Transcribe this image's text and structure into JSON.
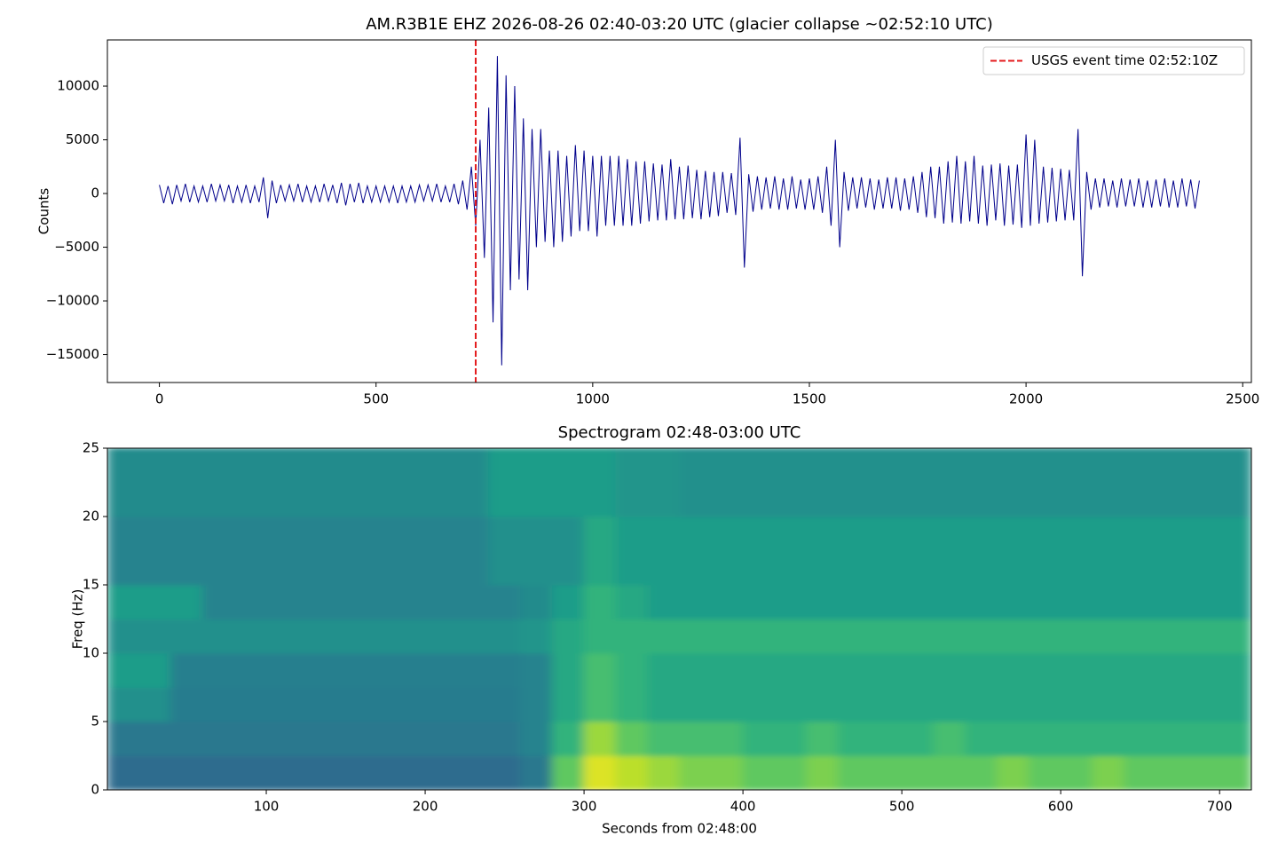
{
  "chart_data": [
    {
      "type": "line",
      "title": "AM.R3B1E EHZ  2026-08-26 02:40-03:20 UTC (glacier collapse ~02:52:10 UTC)",
      "ylabel": "Counts",
      "xlim": [
        -120,
        2520
      ],
      "ylim": [
        -17600,
        14300
      ],
      "xticks": [
        0,
        500,
        1000,
        1500,
        2000,
        2500
      ],
      "yticks": [
        {
          "value": -15000,
          "label": "−15000"
        },
        {
          "value": -10000,
          "label": "−10000"
        },
        {
          "value": -5000,
          "label": "−5000"
        },
        0,
        5000,
        10000
      ],
      "x": [
        0,
        10,
        20,
        30,
        40,
        50,
        60,
        70,
        80,
        90,
        100,
        110,
        120,
        130,
        140,
        150,
        160,
        170,
        180,
        190,
        200,
        210,
        220,
        230,
        240,
        250,
        260,
        270,
        280,
        290,
        300,
        310,
        320,
        330,
        340,
        350,
        360,
        370,
        380,
        390,
        400,
        410,
        420,
        430,
        440,
        450,
        460,
        470,
        480,
        490,
        500,
        510,
        520,
        530,
        540,
        550,
        560,
        570,
        580,
        590,
        600,
        610,
        620,
        630,
        640,
        650,
        660,
        670,
        680,
        690,
        700,
        710,
        720,
        730,
        740,
        750,
        760,
        770,
        780,
        790,
        800,
        810,
        820,
        830,
        840,
        850,
        860,
        870,
        880,
        890,
        900,
        910,
        920,
        930,
        940,
        950,
        960,
        970,
        980,
        990,
        1000,
        1010,
        1020,
        1030,
        1040,
        1050,
        1060,
        1070,
        1080,
        1090,
        1100,
        1110,
        1120,
        1130,
        1140,
        1150,
        1160,
        1170,
        1180,
        1190,
        1200,
        1210,
        1220,
        1230,
        1240,
        1250,
        1260,
        1270,
        1280,
        1290,
        1300,
        1310,
        1320,
        1330,
        1340,
        1350,
        1360,
        1370,
        1380,
        1390,
        1400,
        1410,
        1420,
        1430,
        1440,
        1450,
        1460,
        1470,
        1480,
        1490,
        1500,
        1510,
        1520,
        1530,
        1540,
        1550,
        1560,
        1570,
        1580,
        1590,
        1600,
        1610,
        1620,
        1630,
        1640,
        1650,
        1660,
        1670,
        1680,
        1690,
        1700,
        1710,
        1720,
        1730,
        1740,
        1750,
        1760,
        1770,
        1780,
        1790,
        1800,
        1810,
        1820,
        1830,
        1840,
        1850,
        1860,
        1870,
        1880,
        1890,
        1900,
        1910,
        1920,
        1930,
        1940,
        1950,
        1960,
        1970,
        1980,
        1990,
        2000,
        2010,
        2020,
        2030,
        2040,
        2050,
        2060,
        2070,
        2080,
        2090,
        2100,
        2110,
        2120,
        2130,
        2140,
        2150,
        2160,
        2170,
        2180,
        2190,
        2200,
        2210,
        2220,
        2230,
        2240,
        2250,
        2260,
        2270,
        2280,
        2290,
        2300,
        2310,
        2320,
        2330,
        2340,
        2350,
        2360,
        2370,
        2380,
        2390,
        2400
      ],
      "series": [
        {
          "color": "#00008b",
          "values": [
            800,
            -900,
            700,
            -1000,
            800,
            -700,
            900,
            -800,
            700,
            -800,
            700,
            -800,
            900,
            -700,
            800,
            -700,
            800,
            -900,
            700,
            -800,
            800,
            -900,
            700,
            -800,
            1500,
            -2300,
            1200,
            -900,
            800,
            -700,
            800,
            -700,
            900,
            -800,
            700,
            -800,
            700,
            -800,
            900,
            -700,
            800,
            -900,
            1000,
            -1100,
            900,
            -800,
            1000,
            -900,
            700,
            -800,
            700,
            -800,
            700,
            -800,
            700,
            -900,
            700,
            -800,
            700,
            -800,
            800,
            -700,
            800,
            -700,
            900,
            -800,
            700,
            -800,
            900,
            -1000,
            1200,
            -1500,
            2500,
            -3000,
            5000,
            -6000,
            8000,
            -12000,
            12800,
            -16000,
            11000,
            -9000,
            10000,
            -8000,
            7000,
            -9000,
            6000,
            -5000,
            6000,
            -4500,
            4000,
            -5000,
            4000,
            -4500,
            3500,
            -4000,
            4500,
            -3500,
            4000,
            -3500,
            3500,
            -4000,
            3500,
            -3000,
            3500,
            -3000,
            3500,
            -3000,
            3200,
            -3000,
            3000,
            -2800,
            3000,
            -2600,
            2800,
            -2500,
            2700,
            -2500,
            3200,
            -2400,
            2500,
            -2400,
            2600,
            -2300,
            2200,
            -2400,
            2100,
            -2200,
            2000,
            -2100,
            2000,
            -1800,
            1900,
            -2000,
            5200,
            -6900,
            1800,
            -1700,
            1600,
            -1500,
            1500,
            -1400,
            1600,
            -1500,
            1400,
            -1500,
            1600,
            -1400,
            1300,
            -1500,
            1400,
            -1500,
            1600,
            -1800,
            2500,
            -3000,
            5000,
            -5000,
            2000,
            -1600,
            1500,
            -1400,
            1500,
            -1300,
            1400,
            -1500,
            1300,
            -1400,
            1500,
            -1400,
            1500,
            -1600,
            1400,
            -1500,
            1600,
            -1800,
            2000,
            -2200,
            2500,
            -2300,
            2500,
            -2800,
            3000,
            -2700,
            3500,
            -2800,
            3000,
            -2600,
            3500,
            -2800,
            2600,
            -3000,
            2700,
            -2500,
            2800,
            -3000,
            2600,
            -2900,
            2700,
            -3200,
            5500,
            -3000,
            5000,
            -2800,
            2500,
            -2700,
            2400,
            -2600,
            2300,
            -2500,
            2200,
            -2500,
            6000,
            -7700,
            2000,
            -1500,
            1400,
            -1300,
            1400,
            -1200,
            1200,
            -1300,
            1400,
            -1200,
            1300,
            -1200,
            1400,
            -1300,
            1200,
            -1300,
            1300,
            -1200,
            1400,
            -1300,
            1200,
            -1300,
            1400,
            -1200,
            1300,
            -1400,
            1200
          ]
        }
      ],
      "vlines": [
        {
          "x": 730,
          "name": "USGS event time 02:52:10Z",
          "color": "#e41a1c",
          "style": "dashed"
        }
      ],
      "legend": "upper right"
    },
    {
      "type": "heatmap",
      "title": "Spectrogram 02:48-03:00 UTC",
      "xlabel": "Seconds from 02:48:00",
      "ylabel": "Freq (Hz)",
      "xlim": [
        0,
        720
      ],
      "ylim": [
        0,
        25
      ],
      "xticks": [
        100,
        200,
        300,
        400,
        500,
        600,
        700
      ],
      "yticks": [
        0,
        5,
        10,
        15,
        20,
        25
      ],
      "colormap": "viridis",
      "zlim": [
        0,
        10
      ],
      "xbins": [
        0,
        20,
        40,
        60,
        80,
        100,
        120,
        140,
        160,
        180,
        200,
        220,
        240,
        260,
        280,
        300,
        320,
        340,
        360,
        380,
        400,
        420,
        440,
        460,
        480,
        500,
        520,
        540,
        560,
        580,
        600,
        620,
        640,
        660,
        680,
        700,
        720
      ],
      "ybins": [
        0,
        2.5,
        5,
        7.5,
        10,
        12.5,
        15,
        17.5,
        20,
        22.5,
        25
      ],
      "z": [
        [
          3.5,
          3.5,
          3.5,
          3.5,
          3.5,
          3.5,
          3.5,
          3.5,
          3.5,
          3.5,
          3.5,
          3.5,
          3.5,
          4,
          7.5,
          9.5,
          9,
          8.5,
          8,
          8,
          7.5,
          7.5,
          8,
          7.5,
          7.5,
          7.5,
          7.5,
          7.5,
          8,
          7.5,
          7.5,
          8,
          7.5,
          7.5,
          7.5,
          7.5
        ],
        [
          4,
          4,
          4,
          4,
          4,
          4,
          4,
          4,
          4,
          4,
          4,
          4,
          4,
          4.5,
          6.5,
          8.5,
          7.5,
          7,
          7,
          7,
          6.5,
          6.5,
          7,
          6.5,
          6.5,
          6.5,
          7,
          6.5,
          6.5,
          6.5,
          6.5,
          6.5,
          6.5,
          6.5,
          6.5,
          6.5
        ],
        [
          5,
          5,
          4.2,
          4.2,
          4.2,
          4.2,
          4.2,
          4.2,
          4.2,
          4.2,
          4.2,
          4.2,
          4.2,
          4.5,
          6,
          7,
          6.5,
          6,
          6,
          6,
          6,
          6,
          6,
          6,
          6,
          6,
          6,
          6,
          6,
          6,
          6,
          6,
          6,
          6,
          6,
          6
        ],
        [
          5.5,
          5.5,
          4.3,
          4.3,
          4.3,
          4.3,
          4.3,
          4.3,
          4.3,
          4.3,
          4.3,
          4.3,
          4.3,
          4.5,
          6,
          7,
          6.5,
          6,
          6,
          6,
          6,
          6,
          6,
          6,
          6,
          6,
          6,
          6,
          6,
          6,
          6,
          6,
          6,
          6,
          6,
          6
        ],
        [
          5,
          5,
          5,
          5,
          5,
          5,
          5,
          5,
          5,
          5,
          5,
          5,
          5,
          5.2,
          6,
          6.5,
          6.5,
          6.5,
          6.5,
          6.5,
          6.5,
          6.5,
          6.5,
          6.5,
          6.5,
          6.5,
          6.5,
          6.5,
          6.5,
          6.5,
          6.5,
          6.5,
          6.5,
          6.5,
          6.5,
          6.5
        ],
        [
          5.5,
          5.5,
          5.5,
          4.5,
          4.5,
          4.5,
          4.5,
          4.5,
          4.5,
          4.5,
          4.5,
          4.5,
          4.5,
          4.8,
          5.5,
          6.5,
          6,
          5.5,
          5.5,
          5.5,
          5.5,
          5.5,
          5.5,
          5.5,
          5.5,
          5.5,
          5.5,
          5.5,
          5.5,
          5.5,
          5.5,
          5.5,
          5.5,
          5.5,
          5.5,
          5.5
        ],
        [
          4.5,
          4.5,
          4.5,
          4.5,
          4.5,
          4.5,
          4.5,
          4.5,
          4.5,
          4.5,
          4.5,
          4.5,
          5,
          5,
          5,
          6,
          5.5,
          5.5,
          5.5,
          5.5,
          5.5,
          5.5,
          5.5,
          5.5,
          5.5,
          5.5,
          5.5,
          5.5,
          5.5,
          5.5,
          5.5,
          5.5,
          5.5,
          5.5,
          5.5,
          5.5
        ],
        [
          4.5,
          4.5,
          4.5,
          4.5,
          4.5,
          4.5,
          4.5,
          4.5,
          4.5,
          4.5,
          4.5,
          4.5,
          5,
          5,
          5,
          6,
          5.5,
          5.5,
          5.5,
          5.5,
          5.5,
          5.5,
          5.5,
          5.5,
          5.5,
          5.5,
          5.5,
          5.5,
          5.5,
          5.5,
          5.5,
          5.5,
          5.5,
          5.5,
          5.5,
          5.5
        ],
        [
          4.8,
          4.8,
          4.8,
          4.8,
          4.8,
          4.8,
          4.8,
          4.8,
          4.8,
          4.8,
          4.8,
          4.8,
          5.5,
          5.5,
          5.5,
          5.5,
          5.2,
          5.2,
          5,
          5,
          5,
          5,
          5,
          5,
          5,
          5,
          5,
          5,
          5,
          5,
          5,
          5,
          5,
          5,
          5,
          5
        ],
        [
          4.8,
          4.8,
          4.8,
          4.8,
          4.8,
          4.8,
          4.8,
          4.8,
          4.8,
          4.8,
          4.8,
          4.8,
          5.5,
          5.5,
          5.5,
          5.5,
          5.2,
          5.2,
          5,
          5,
          5,
          5,
          5,
          5,
          5,
          5,
          5,
          5,
          5,
          5,
          5,
          5,
          5,
          5,
          5,
          5
        ]
      ]
    }
  ]
}
